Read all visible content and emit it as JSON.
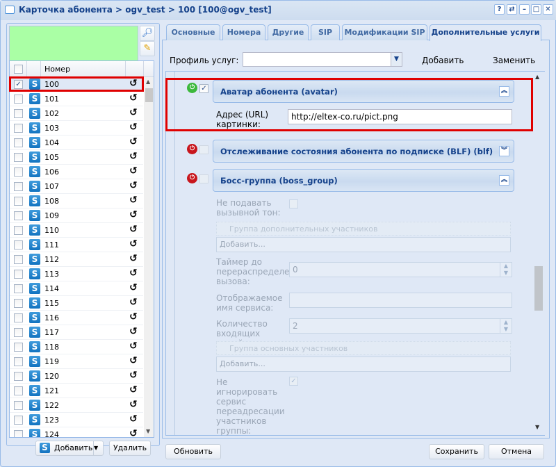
{
  "window": {
    "title": "Карточка абонента > ogv_test > 100 [100@ogv_test]",
    "tools": [
      "?",
      "⇄",
      "–",
      "□",
      "✕"
    ]
  },
  "left": {
    "column_header": "Номер",
    "rows": [
      {
        "number": "100",
        "checked": true,
        "selected": true
      },
      {
        "number": "101"
      },
      {
        "number": "102"
      },
      {
        "number": "103"
      },
      {
        "number": "104"
      },
      {
        "number": "105"
      },
      {
        "number": "106"
      },
      {
        "number": "107"
      },
      {
        "number": "108"
      },
      {
        "number": "109"
      },
      {
        "number": "110"
      },
      {
        "number": "111"
      },
      {
        "number": "112"
      },
      {
        "number": "113"
      },
      {
        "number": "114"
      },
      {
        "number": "115"
      },
      {
        "number": "116"
      },
      {
        "number": "117"
      },
      {
        "number": "118"
      },
      {
        "number": "119"
      },
      {
        "number": "120"
      },
      {
        "number": "121"
      },
      {
        "number": "122"
      },
      {
        "number": "123"
      },
      {
        "number": "124"
      }
    ],
    "add_label": "Добавить",
    "delete_label": "Удалить"
  },
  "tabs": [
    {
      "label": "Основные"
    },
    {
      "label": "Номера"
    },
    {
      "label": "Другие"
    },
    {
      "label": "SIP"
    },
    {
      "label": "Модификации SIP"
    },
    {
      "label": "Дополнительные услуги",
      "active": true
    }
  ],
  "profile": {
    "label": "Профиль услуг:",
    "value": "",
    "add_label": "Добавить",
    "replace_label": "Заменить"
  },
  "services": {
    "avatar": {
      "title": "Аватар абонента (avatar)",
      "enabled": true,
      "url_label": "Адрес (URL) картинки:",
      "url_value": "http://eltex-co.ru/pict.png"
    },
    "blf": {
      "title": "Отслеживание состояния абонента по подписке (BLF) (blf)",
      "enabled": false
    },
    "boss": {
      "title": "Босс-группа (boss_group)",
      "enabled": false,
      "no_ringback_label": "Не подавать вызывной тон:",
      "extra_group_label": "Группа дополнительных участников",
      "add_placeholder": "Добавить...",
      "timer_label": "Таймер до перераспределения вызова:",
      "timer_label_visible": "Таймер до перераспределени: вызова:",
      "timer_value": "0",
      "display_name_label": "Отображаемое имя сервиса:",
      "display_name_value": "",
      "lines_label": "Количество входящих линий:",
      "lines_value": "2",
      "main_group_label": "Группа основных участников",
      "add_placeholder2": "Добавить...",
      "no_ignore_label": "Не игнорировать сервис переадресации участников группы:",
      "no_ignore_checked": true
    }
  },
  "footer": {
    "refresh_label": "Обновить",
    "save_label": "Сохранить",
    "cancel_label": "Отмена"
  },
  "colors": {
    "highlight": "#e00000",
    "title": "#15428b",
    "search_box": "#aaffa5",
    "power_on": "#3cb83c",
    "power_off": "#c8161d"
  }
}
